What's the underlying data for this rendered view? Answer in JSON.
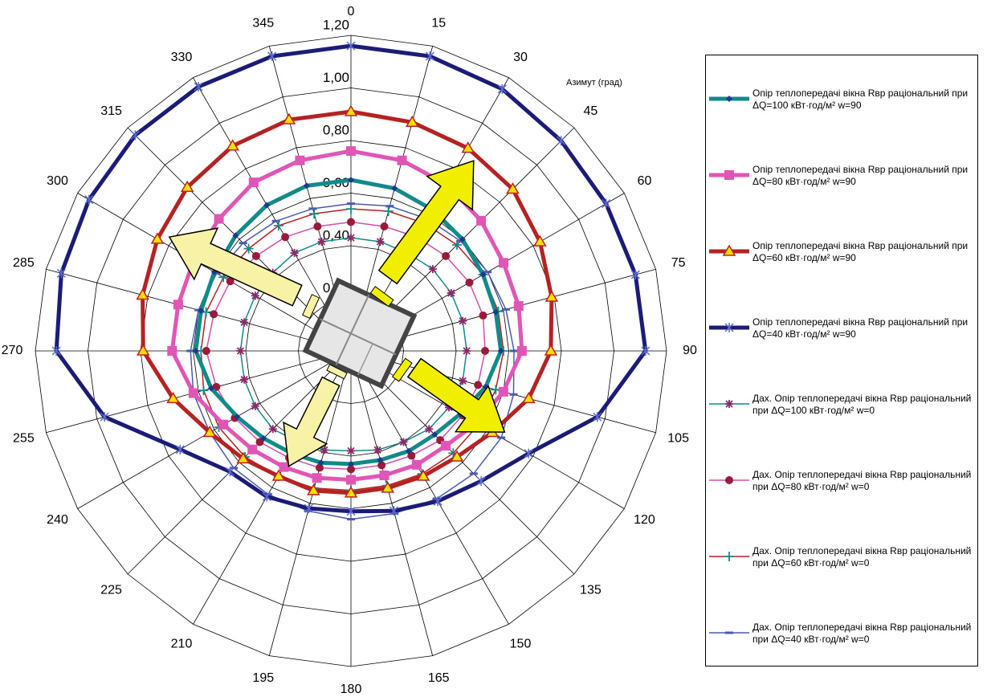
{
  "chart_data": {
    "type": "radar",
    "axis_title": "Азимут (град)",
    "categories": [
      "0",
      "15",
      "30",
      "45",
      "60",
      "75",
      "90",
      "105",
      "120",
      "135",
      "150",
      "165",
      "180",
      "195",
      "210",
      "225",
      "240",
      "255",
      "270",
      "285",
      "300",
      "315",
      "330",
      "345"
    ],
    "ylim": [
      0,
      1.2
    ],
    "yticks": [
      {
        "value": 0.2,
        "label": "0,20"
      },
      {
        "value": 0.4,
        "label": "0,40"
      },
      {
        "value": 0.6,
        "label": "0,60"
      },
      {
        "value": 0.8,
        "label": "0,80"
      },
      {
        "value": 1.0,
        "label": "1,00"
      },
      {
        "value": 1.2,
        "label": "1,20"
      }
    ],
    "grid": true,
    "series": [
      {
        "name": "Опір теплопередачі вікна Rвр раціональний при ΔQ=100 кВт·год/м² w=90",
        "color": "#138a8a",
        "marker_color": "#1a3a8a",
        "marker": "diamond",
        "line_width": 5,
        "values": [
          0.65,
          0.64,
          0.62,
          0.6,
          0.58,
          0.57,
          0.57,
          0.53,
          0.48,
          0.45,
          0.44,
          0.43,
          0.43,
          0.44,
          0.45,
          0.47,
          0.5,
          0.55,
          0.59,
          0.59,
          0.6,
          0.62,
          0.64,
          0.65
        ]
      },
      {
        "name": "Опір теплопередачі вікна Rвр раціональний при ΔQ=80 кВт·год/м² w=90",
        "color": "#e055b5",
        "marker_color": "#e055b5",
        "marker": "square",
        "line_width": 5,
        "values": [
          0.76,
          0.75,
          0.73,
          0.7,
          0.67,
          0.66,
          0.65,
          0.6,
          0.55,
          0.51,
          0.5,
          0.49,
          0.49,
          0.5,
          0.51,
          0.53,
          0.56,
          0.62,
          0.68,
          0.68,
          0.69,
          0.71,
          0.74,
          0.75
        ]
      },
      {
        "name": "Опір теплопередачі вікна Rвр раціональний при ΔQ=60 кВт·год/м² w=90",
        "color": "#b52222",
        "marker_color": "#f5e000",
        "marker": "triangle",
        "line_width": 5,
        "values": [
          0.91,
          0.9,
          0.89,
          0.87,
          0.83,
          0.79,
          0.76,
          0.7,
          0.62,
          0.57,
          0.55,
          0.54,
          0.54,
          0.55,
          0.55,
          0.58,
          0.62,
          0.7,
          0.79,
          0.82,
          0.85,
          0.88,
          0.9,
          0.91
        ]
      },
      {
        "name": "Опір теплопередачі вікна Rвр раціональний при ΔQ=40 кВт·год/м² w=90",
        "color": "#1c1c78",
        "marker_color": "#5a6ad0",
        "marker": "star",
        "line_width": 5,
        "values": [
          1.16,
          1.16,
          1.15,
          1.13,
          1.12,
          1.12,
          1.12,
          0.97,
          0.78,
          0.7,
          0.66,
          0.63,
          0.61,
          0.62,
          0.64,
          0.65,
          0.75,
          0.97,
          1.12,
          1.14,
          1.15,
          1.16,
          1.16,
          1.16
        ]
      },
      {
        "name": "Дах. Опір теплопередачі вікна Rвр раціональний при ΔQ=100 кВт·год/м² w=0",
        "color": "#138a8a",
        "marker_color": "#8b2a6b",
        "marker": "asterisk",
        "line_width": 1.5,
        "values": [
          0.43,
          0.43,
          0.43,
          0.44,
          0.44,
          0.44,
          0.44,
          0.44,
          0.43,
          0.42,
          0.4,
          0.39,
          0.38,
          0.39,
          0.4,
          0.42,
          0.42,
          0.42,
          0.42,
          0.42,
          0.42,
          0.42,
          0.43,
          0.43
        ]
      },
      {
        "name": "Дах. Опір теплопередачі вікна Rвр раціональний при ΔQ=80 кВт·год/м² w=0",
        "color": "#d050b0",
        "marker_color": "#9a1a3a",
        "marker": "circle",
        "line_width": 1.5,
        "values": [
          0.49,
          0.49,
          0.5,
          0.51,
          0.52,
          0.52,
          0.51,
          0.5,
          0.49,
          0.48,
          0.46,
          0.45,
          0.45,
          0.46,
          0.47,
          0.49,
          0.51,
          0.53,
          0.55,
          0.54,
          0.53,
          0.51,
          0.5,
          0.49
        ]
      },
      {
        "name": "Дах. Опір теплопередачі вікна Rвр раціональний при ΔQ=60 кВт·год/м² w=0",
        "color": "#b52222",
        "marker_color": "#138a8a",
        "marker": "plus",
        "line_width": 1.5,
        "values": [
          0.54,
          0.55,
          0.56,
          0.57,
          0.58,
          0.58,
          0.58,
          0.57,
          0.56,
          0.55,
          0.54,
          0.53,
          0.53,
          0.54,
          0.55,
          0.57,
          0.58,
          0.58,
          0.57,
          0.57,
          0.56,
          0.55,
          0.55,
          0.54
        ]
      },
      {
        "name": "Дах. Опір теплопередачі вікна Rвр раціональний при ΔQ=40 кВт·год/м² w=0",
        "color": "#4a5ab0",
        "marker_color": "#4a5ab0",
        "marker": "dash",
        "line_width": 1.5,
        "values": [
          0.56,
          0.57,
          0.58,
          0.59,
          0.6,
          0.61,
          0.62,
          0.64,
          0.66,
          0.66,
          0.65,
          0.64,
          0.64,
          0.63,
          0.63,
          0.63,
          0.62,
          0.62,
          0.61,
          0.6,
          0.59,
          0.58,
          0.57,
          0.56
        ]
      }
    ]
  }
}
